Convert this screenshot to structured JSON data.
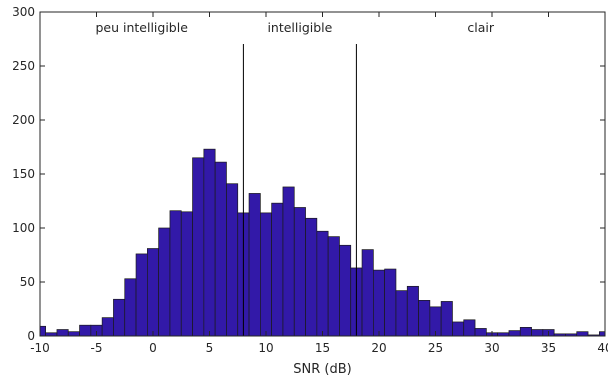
{
  "chart_data": {
    "type": "bar",
    "xlabel": "SNR (dB)",
    "ylabel": "",
    "xlim": [
      -10,
      40
    ],
    "ylim": [
      0,
      300
    ],
    "xticks": [
      -10,
      -5,
      0,
      5,
      10,
      15,
      20,
      25,
      30,
      35,
      40
    ],
    "yticks": [
      0,
      50,
      100,
      150,
      200,
      250,
      300
    ],
    "bin_width": 1,
    "bin_start": -10.5,
    "values": [
      9,
      3,
      6,
      4,
      10,
      10,
      17,
      34,
      53,
      76,
      81,
      100,
      116,
      115,
      165,
      173,
      161,
      141,
      114,
      132,
      114,
      123,
      138,
      119,
      109,
      97,
      92,
      84,
      63,
      80,
      61,
      62,
      42,
      46,
      33,
      27,
      32,
      13,
      15,
      7,
      3,
      3,
      5,
      8,
      6,
      6,
      2,
      2,
      4,
      1,
      4
    ],
    "bar_color": "#3219A8",
    "edge_color": "#1a1a1a",
    "grid": false,
    "threshold_lines": [
      8,
      18
    ],
    "regions": [
      {
        "label": "peu intelligible",
        "x": -1
      },
      {
        "label": "intelligible",
        "x": 13
      },
      {
        "label": "clair",
        "x": 29
      }
    ]
  }
}
